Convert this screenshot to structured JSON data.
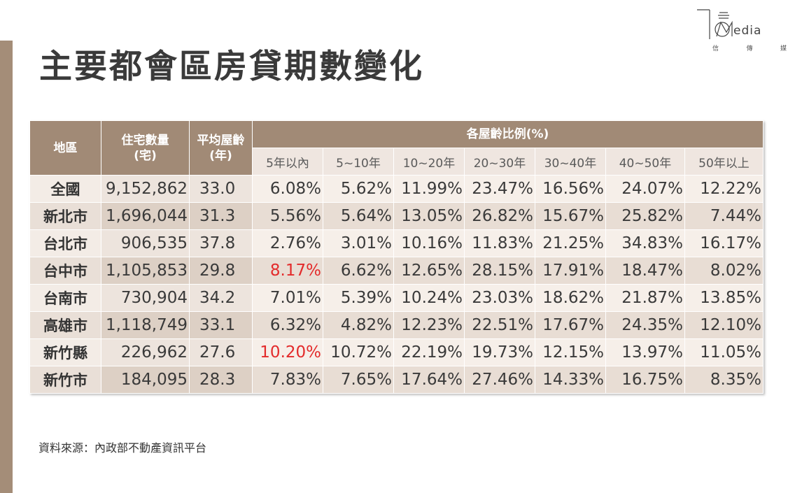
{
  "title": "主要都會區房貸期數變化",
  "logo": {
    "word": "edia",
    "sub": [
      "信",
      "傳",
      "媒"
    ]
  },
  "table": {
    "headers": {
      "region": "地區",
      "houses_l1": "住宅數量",
      "houses_l2": "(宅)",
      "age_l1": "平均屋齡",
      "age_l2": "(年)",
      "ratio": "各屋齡比例(%)",
      "buckets": [
        "5年以內",
        "5~10年",
        "10~20年",
        "20~30年",
        "30~40年",
        "40~50年",
        "50年以上"
      ]
    },
    "rows": [
      {
        "region": "全國",
        "houses": "9,152,862",
        "avg_age": "33.0",
        "ratios": [
          "6.08%",
          "5.62%",
          "11.99%",
          "23.47%",
          "16.56%",
          "24.07%",
          "12.22%"
        ]
      },
      {
        "region": "新北市",
        "houses": "1,696,044",
        "avg_age": "31.3",
        "ratios": [
          "5.56%",
          "5.64%",
          "13.05%",
          "26.82%",
          "15.67%",
          "25.82%",
          "7.44%"
        ]
      },
      {
        "region": "台北市",
        "houses": "906,535",
        "avg_age": "37.8",
        "ratios": [
          "2.76%",
          "3.01%",
          "10.16%",
          "11.83%",
          "21.25%",
          "34.83%",
          "16.17%"
        ]
      },
      {
        "region": "台中市",
        "houses": "1,105,853",
        "avg_age": "29.8",
        "ratios": [
          "8.17%",
          "6.62%",
          "12.65%",
          "28.15%",
          "17.91%",
          "18.47%",
          "8.02%"
        ]
      },
      {
        "region": "台南市",
        "houses": "730,904",
        "avg_age": "34.2",
        "ratios": [
          "7.01%",
          "5.39%",
          "10.24%",
          "23.03%",
          "18.62%",
          "21.87%",
          "13.85%"
        ]
      },
      {
        "region": "高雄市",
        "houses": "1,118,749",
        "avg_age": "33.1",
        "ratios": [
          "6.32%",
          "4.82%",
          "12.23%",
          "22.51%",
          "17.67%",
          "24.35%",
          "12.10%"
        ]
      },
      {
        "region": "新竹縣",
        "houses": "226,962",
        "avg_age": "27.6",
        "ratios": [
          "10.20%",
          "10.72%",
          "22.19%",
          "19.73%",
          "12.15%",
          "13.97%",
          "11.05%"
        ]
      },
      {
        "region": "新竹市",
        "houses": "184,095",
        "avg_age": "28.3",
        "ratios": [
          "7.83%",
          "7.65%",
          "17.64%",
          "27.46%",
          "14.33%",
          "16.75%",
          "8.35%"
        ]
      }
    ],
    "highlight_color": "#e32b2b",
    "highlighted": [
      "台中市:5年以內",
      "新竹縣:5年以內"
    ]
  },
  "source": "資料來源：內政部不動產資訊平台"
}
